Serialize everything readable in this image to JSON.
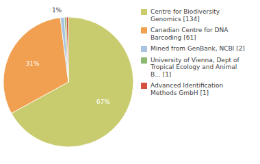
{
  "chart_data": {
    "type": "pie",
    "categories": [
      "Centre for Biodiversity\nGenomics [134]",
      "Canadian Centre for DNA\nBarcoding [61]",
      "Mined from GenBank, NCBI [2]",
      "University of Vienna, Dept of\nTropical Ecology and Animal\nB... [1]",
      "Advanced Identification\nMethods GmbH [1]"
    ],
    "values": [
      67,
      31,
      1,
      0.5,
      0.5
    ],
    "value_labels": [
      "67%",
      "31%",
      "1%",
      null,
      null
    ],
    "colors": [
      "#c8cc6e",
      "#f0a050",
      "#a8c4e0",
      "#8db870",
      "#d45040"
    ],
    "data_labels": true,
    "legend": "right"
  }
}
